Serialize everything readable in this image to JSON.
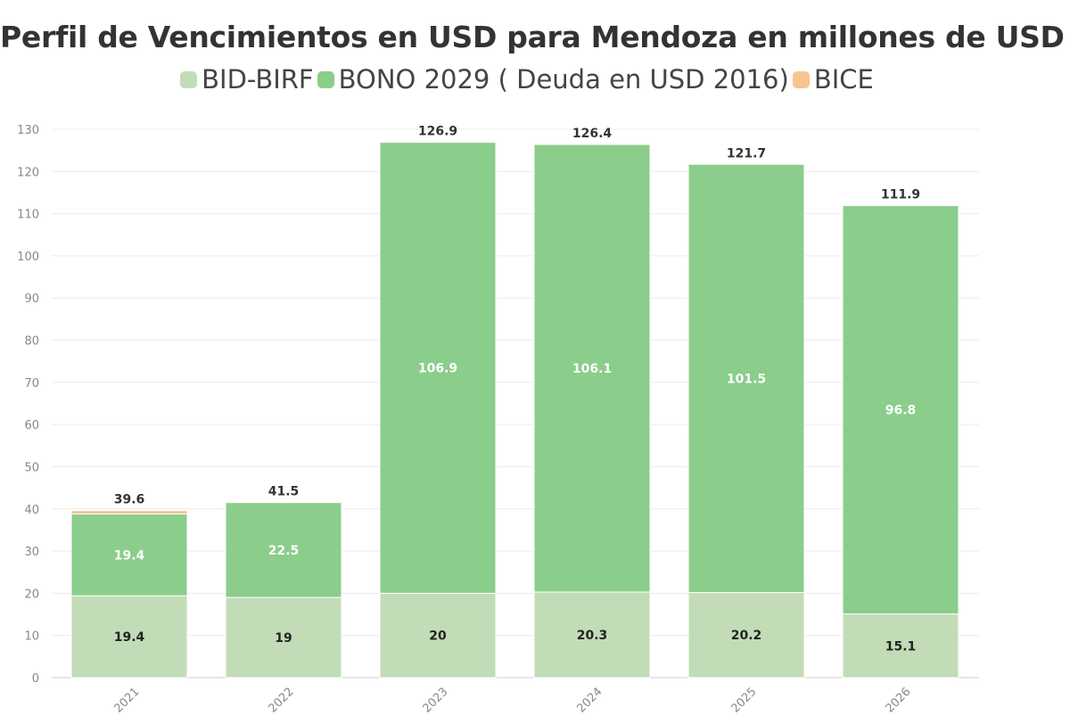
{
  "chart_data": {
    "type": "bar",
    "stacked": true,
    "title": "Perfil de Vencimientos en USD para Mendoza en millones de USD",
    "categories": [
      "2021",
      "2022",
      "2023",
      "2024",
      "2025",
      "2026"
    ],
    "series": [
      {
        "name": "BID-BIRF",
        "color": "#c2dcb8",
        "values": [
          19.4,
          19,
          20,
          20.3,
          20.2,
          15.1
        ],
        "label_color": "dark"
      },
      {
        "name": "BONO 2029 ( Deuda en USD 2016)",
        "color": "#8bcd8b",
        "values": [
          19.4,
          22.5,
          106.9,
          106.1,
          101.5,
          96.8
        ],
        "label_color": "white"
      },
      {
        "name": "BICE",
        "color": "#f7c48f",
        "values": [
          0.8,
          0,
          0,
          0,
          0,
          0
        ],
        "label_color": "none"
      }
    ],
    "totals": [
      39.6,
      41.5,
      126.9,
      126.4,
      121.7,
      111.9
    ],
    "ylim": [
      0,
      130
    ],
    "yticks": [
      0,
      10,
      20,
      30,
      40,
      50,
      60,
      70,
      80,
      90,
      100,
      110,
      120,
      130
    ],
    "xlabel": "",
    "ylabel": "",
    "grid": true,
    "legend_position": "top"
  }
}
